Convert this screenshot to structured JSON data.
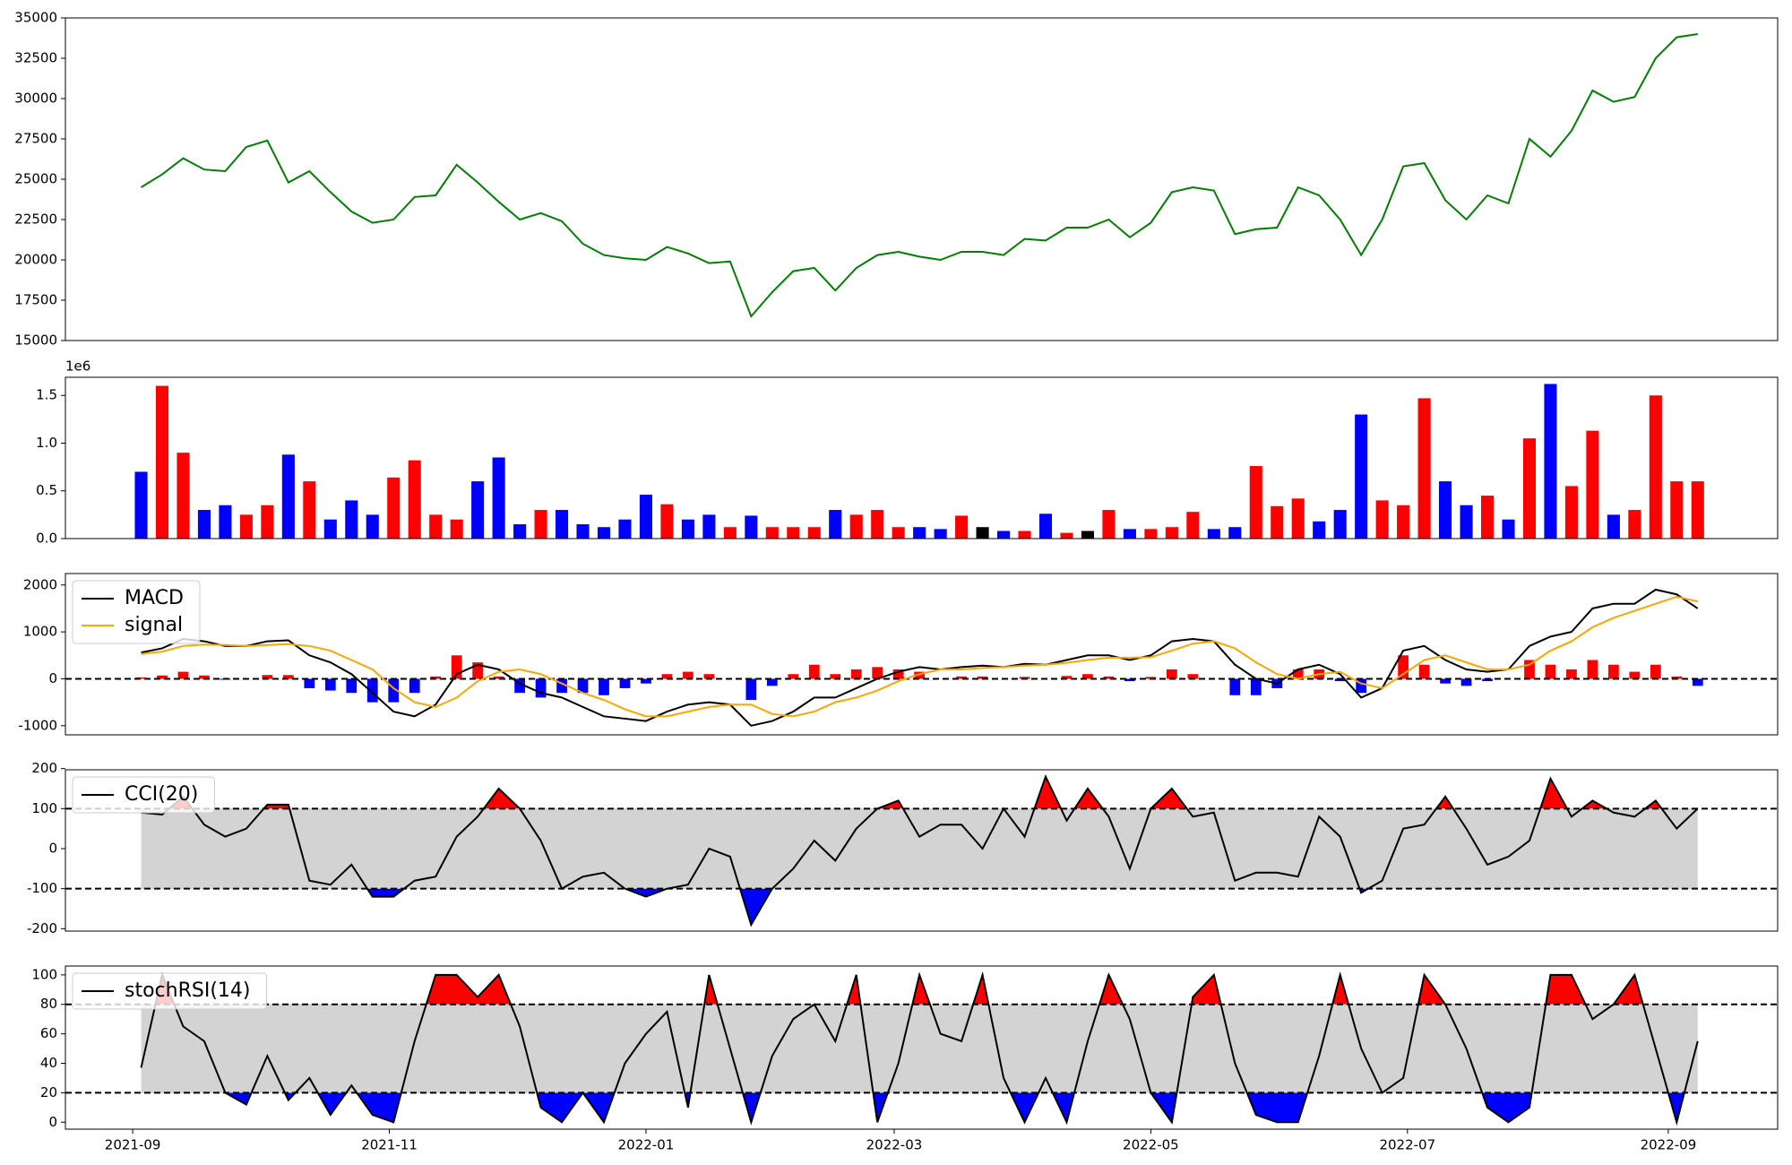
{
  "chart_data": {
    "type": "panels",
    "x": [
      18873,
      18878,
      18883,
      18888,
      18893,
      18898,
      18903,
      18908,
      18913,
      18918,
      18923,
      18928,
      18933,
      18938,
      18943,
      18948,
      18953,
      18958,
      18963,
      18968,
      18973,
      18978,
      18983,
      18988,
      18993,
      18998,
      19003,
      19008,
      19013,
      19018,
      19023,
      19028,
      19033,
      19038,
      19043,
      19048,
      19053,
      19058,
      19063,
      19068,
      19073,
      19078,
      19083,
      19088,
      19093,
      19098,
      19103,
      19108,
      19113,
      19118,
      19123,
      19128,
      19133,
      19138,
      19143,
      19148,
      19153,
      19158,
      19163,
      19168,
      19173,
      19178,
      19183,
      19188,
      19193,
      19198,
      19203,
      19208,
      19213,
      19218,
      19223,
      19228,
      19233,
      19238,
      19243
    ],
    "xlim": [
      18855,
      19262
    ],
    "xticks": [
      {
        "value": 18871,
        "label": "2021-09"
      },
      {
        "value": 18932,
        "label": "2021-11"
      },
      {
        "value": 18993,
        "label": "2022-01"
      },
      {
        "value": 19052,
        "label": "2022-03"
      },
      {
        "value": 19113,
        "label": "2022-05"
      },
      {
        "value": 19174,
        "label": "2022-07"
      },
      {
        "value": 19236,
        "label": "2022-09"
      }
    ],
    "panels": [
      {
        "type": "line",
        "ylim": [
          15000,
          35000
        ],
        "yticks": [
          15000,
          17500,
          20000,
          22500,
          25000,
          27500,
          30000,
          32500,
          35000
        ],
        "series": [
          {
            "color": "#008000",
            "values": [
              24500,
              25300,
              26300,
              25600,
              25500,
              27000,
              27400,
              24800,
              25500,
              24200,
              23000,
              22300,
              22500,
              23900,
              24000,
              25900,
              24800,
              23600,
              22500,
              22900,
              22400,
              21000,
              20300,
              20100,
              20000,
              20800,
              20400,
              19800,
              19900,
              16500,
              18000,
              19300,
              19500,
              18100,
              19500,
              20300,
              20500,
              20200,
              20000,
              20500,
              20500,
              20300,
              21300,
              21200,
              22000,
              22000,
              22500,
              21400,
              22300,
              24200,
              24500,
              24300,
              21600,
              21900,
              22000,
              24500,
              24000,
              22500,
              20300,
              22500,
              25800,
              26000,
              23700,
              22500,
              24000,
              23500,
              27500,
              26400,
              28000,
              30500,
              29800,
              30100,
              32500,
              33800,
              34000
            ]
          }
        ]
      },
      {
        "type": "bar",
        "ylim": [
          0,
          1690000
        ],
        "offset_text": "1e6",
        "yticks": [
          {
            "value": 0,
            "label": "0.0"
          },
          {
            "value": 500000,
            "label": "0.5"
          },
          {
            "value": 1000000,
            "label": "1.0"
          },
          {
            "value": 1500000,
            "label": "1.5"
          }
        ],
        "up_color": "#ff0000",
        "down_color": "#0000ff",
        "flat_color": "#000000",
        "values": [
          700000,
          1600000,
          900000,
          300000,
          350000,
          250000,
          350000,
          880000,
          600000,
          200000,
          400000,
          250000,
          640000,
          820000,
          250000,
          200000,
          600000,
          850000,
          150000,
          300000,
          300000,
          150000,
          120000,
          200000,
          460000,
          360000,
          200000,
          250000,
          120000,
          240000,
          120000,
          120000,
          120000,
          300000,
          250000,
          300000,
          120000,
          120000,
          100000,
          240000,
          120000,
          80000,
          80000,
          260000,
          60000,
          80000,
          300000,
          100000,
          100000,
          120000,
          280000,
          100000,
          120000,
          760000,
          340000,
          420000,
          180000,
          300000,
          1300000,
          400000,
          350000,
          1470000,
          600000,
          350000,
          450000,
          200000,
          1050000,
          1620000,
          550000,
          1130000,
          250000,
          300000,
          1500000,
          600000,
          600000
        ]
      },
      {
        "type": "macd",
        "ylim": [
          -1195,
          2244
        ],
        "yticks": [
          -1000,
          0,
          1000,
          2000
        ],
        "hlines": [
          0
        ],
        "legend": "upper left",
        "series": [
          {
            "name": "MACD",
            "color": "#000000",
            "values": [
              560,
              650,
              850,
              800,
              700,
              700,
              800,
              820,
              500,
              350,
              100,
              -300,
              -700,
              -800,
              -550,
              100,
              300,
              200,
              -100,
              -300,
              -400,
              -600,
              -800,
              -850,
              -900,
              -700,
              -550,
              -500,
              -550,
              -1000,
              -900,
              -700,
              -400,
              -400,
              -200,
              0,
              150,
              250,
              200,
              250,
              280,
              250,
              320,
              300,
              400,
              500,
              500,
              400,
              500,
              800,
              850,
              800,
              300,
              0,
              -100,
              200,
              300,
              100,
              -400,
              -200,
              600,
              700,
              400,
              200,
              150,
              200,
              700,
              900,
              1000,
              1500,
              1600,
              1600,
              1900,
              1800,
              1500
            ]
          },
          {
            "name": "signal",
            "color": "#ffa500",
            "values": [
              530,
              580,
              700,
              730,
              720,
              700,
              720,
              740,
              700,
              600,
              400,
              200,
              -200,
              -500,
              -600,
              -400,
              -50,
              150,
              200,
              100,
              -100,
              -300,
              -450,
              -650,
              -800,
              -800,
              -700,
              -600,
              -550,
              -550,
              -750,
              -800,
              -700,
              -500,
              -400,
              -250,
              -50,
              100,
              200,
              200,
              230,
              250,
              280,
              300,
              340,
              400,
              450,
              450,
              460,
              600,
              750,
              800,
              650,
              350,
              100,
              0,
              100,
              150,
              -100,
              -200,
              100,
              400,
              500,
              350,
              200,
              200,
              300,
              600,
              800,
              1100,
              1300,
              1450,
              1600,
              1750,
              1650
            ]
          }
        ],
        "histogram": {
          "pos_color": "#ff0000",
          "neg_color": "#0000ff",
          "values": [
            30,
            70,
            150,
            70,
            -20,
            0,
            80,
            80,
            -200,
            -250,
            -300,
            -500,
            -500,
            -300,
            50,
            500,
            350,
            50,
            -300,
            -400,
            -300,
            -300,
            -350,
            -200,
            -100,
            100,
            150,
            100,
            0,
            -450,
            -150,
            100,
            300,
            100,
            200,
            250,
            200,
            150,
            0,
            50,
            50,
            0,
            40,
            0,
            60,
            100,
            50,
            -50,
            40,
            200,
            100,
            0,
            -350,
            -350,
            -200,
            200,
            200,
            -50,
            -300,
            0,
            500,
            300,
            -100,
            -150,
            -50,
            0,
            400,
            300,
            200,
            400,
            300,
            150,
            300,
            50,
            -150
          ]
        }
      },
      {
        "type": "band",
        "ylim": [
          -206,
          197
        ],
        "yticks": [
          -200,
          -100,
          0,
          100,
          200
        ],
        "band": [
          -100,
          100
        ],
        "legend": "upper left",
        "band_color": "#d3d3d3",
        "above_color": "#ff0000",
        "below_color": "#0000ff",
        "series": [
          {
            "name": "CCI(20)",
            "color": "#000000",
            "values": [
              90,
              85,
              130,
              60,
              30,
              50,
              110,
              110,
              -80,
              -90,
              -40,
              -120,
              -120,
              -80,
              -70,
              30,
              80,
              150,
              100,
              20,
              -100,
              -70,
              -60,
              -100,
              -120,
              -100,
              -90,
              0,
              -20,
              -190,
              -100,
              -50,
              20,
              -30,
              50,
              100,
              120,
              30,
              60,
              60,
              0,
              100,
              30,
              180,
              70,
              150,
              80,
              -50,
              100,
              150,
              80,
              90,
              -80,
              -60,
              -60,
              -70,
              80,
              30,
              -110,
              -80,
              50,
              60,
              130,
              50,
              -40,
              -20,
              20,
              175,
              80,
              120,
              90,
              80,
              120,
              50,
              100
            ]
          }
        ]
      },
      {
        "type": "band",
        "ylim": [
          -4.7,
          106
        ],
        "yticks": [
          0,
          20,
          40,
          60,
          80,
          100
        ],
        "band": [
          20,
          80
        ],
        "legend": "upper left",
        "band_color": "#d3d3d3",
        "above_color": "#ff0000",
        "below_color": "#0000ff",
        "series": [
          {
            "name": "stochRSI(14)",
            "color": "#000000",
            "values": [
              37,
              100,
              65,
              55,
              20,
              12,
              45,
              15,
              30,
              5,
              25,
              5,
              0,
              55,
              100,
              100,
              85,
              100,
              65,
              10,
              0,
              20,
              0,
              40,
              60,
              75,
              10,
              100,
              50,
              0,
              45,
              70,
              80,
              55,
              100,
              0,
              40,
              100,
              60,
              55,
              100,
              30,
              0,
              30,
              0,
              55,
              100,
              70,
              20,
              0,
              85,
              100,
              40,
              5,
              0,
              0,
              45,
              100,
              50,
              20,
              30,
              100,
              80,
              50,
              10,
              0,
              10,
              100,
              100,
              70,
              80,
              100,
              50,
              0,
              55
            ]
          }
        ]
      }
    ]
  }
}
